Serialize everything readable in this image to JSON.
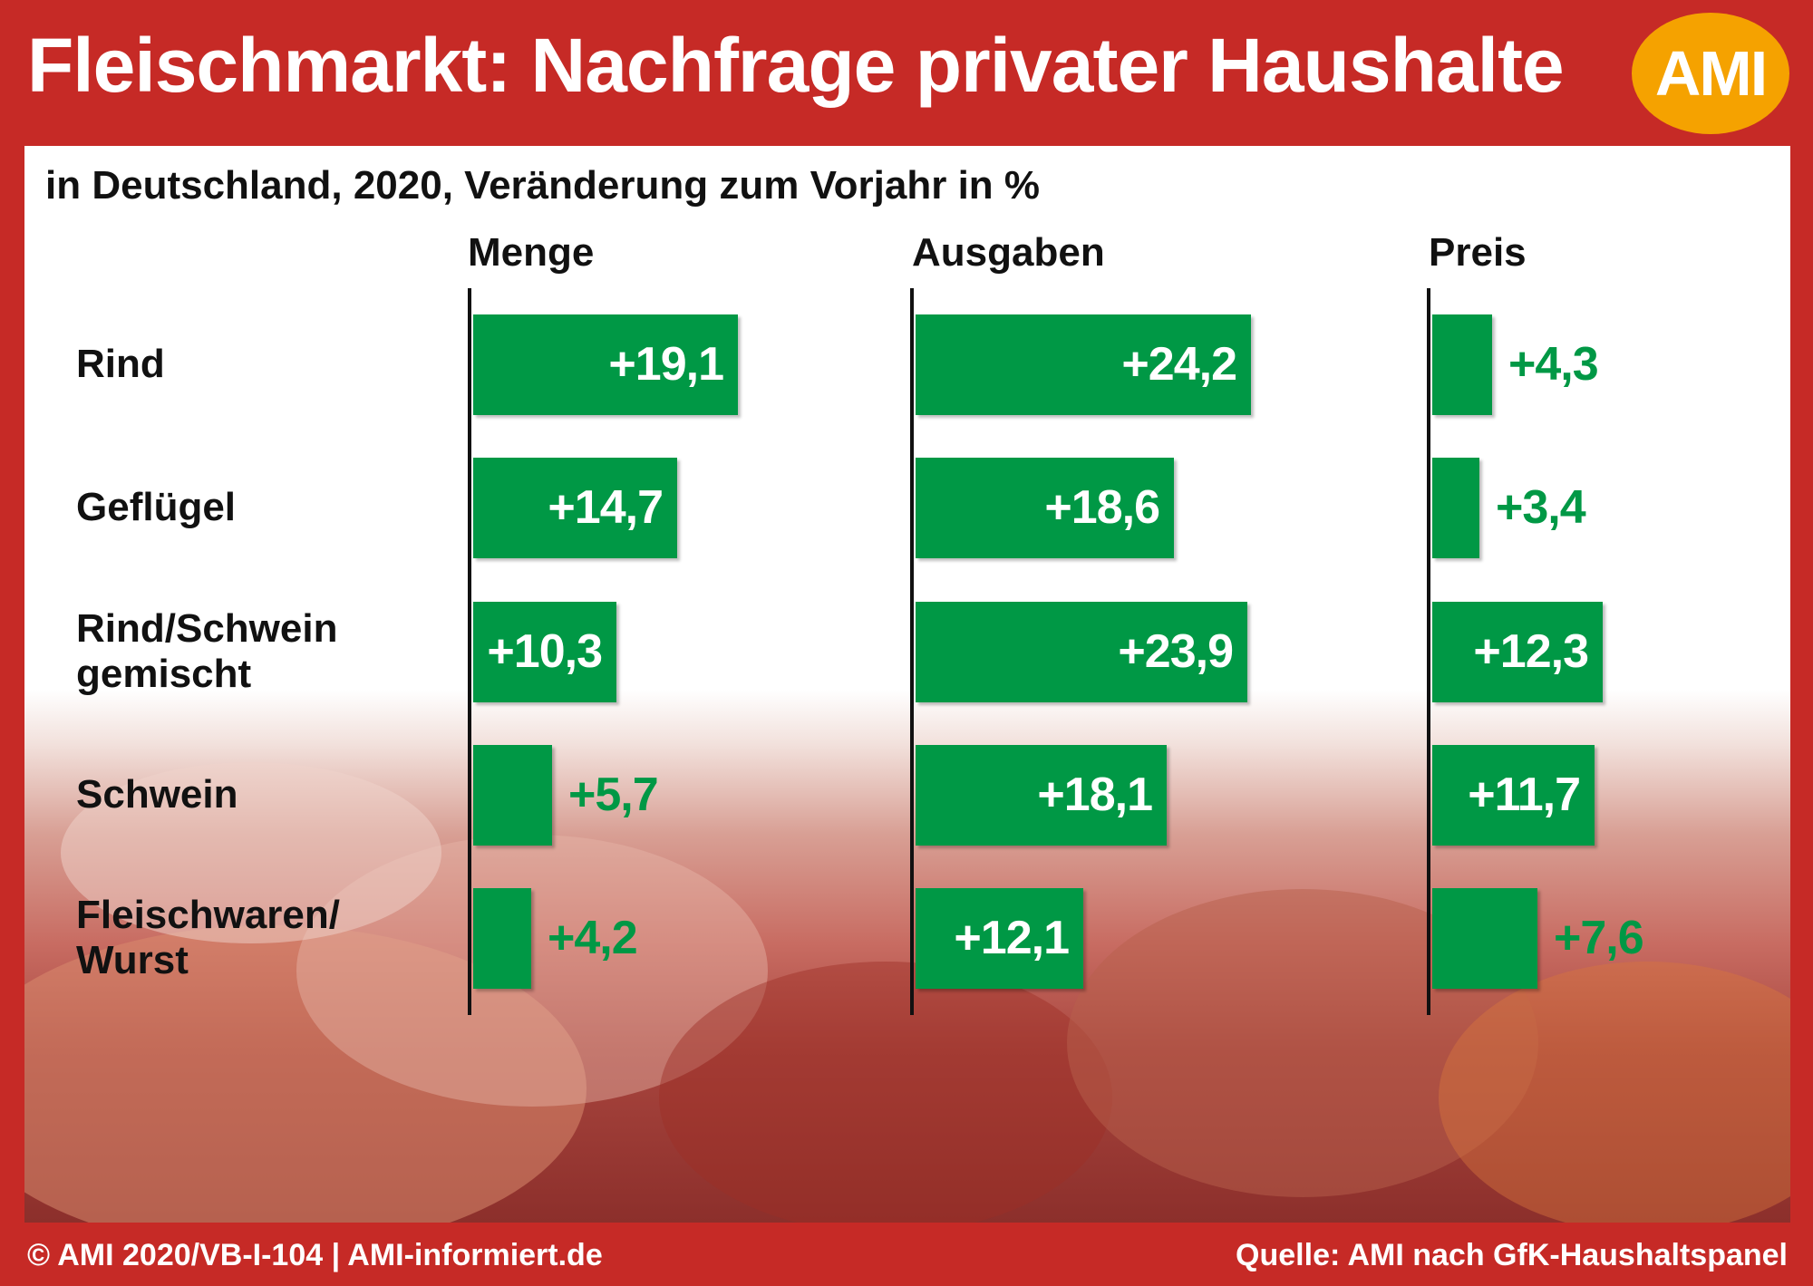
{
  "header": {
    "title": "Fleischmarkt: Nachfrage privater Haushalte",
    "logo_text": "AMI"
  },
  "chart_data": {
    "type": "bar",
    "subtitle": "in Deutschland, 2020, Veränderung zum Vorjahr in %",
    "categories": [
      "Rind",
      "Geflügel",
      "Rind/Schwein\ngemischt",
      "Schwein",
      "Fleischwaren/\nWurst"
    ],
    "series": [
      {
        "name": "Menge",
        "values": [
          19.1,
          14.7,
          10.3,
          5.7,
          4.2
        ],
        "labels": [
          "+19,1",
          "+14,7",
          "+10,3",
          "+5,7",
          "+4,2"
        ]
      },
      {
        "name": "Ausgaben",
        "values": [
          24.2,
          18.6,
          23.9,
          18.1,
          12.1
        ],
        "labels": [
          "+24,2",
          "+18,6",
          "+23,9",
          "+18,1",
          "+12,1"
        ]
      },
      {
        "name": "Preis",
        "values": [
          4.3,
          3.4,
          12.3,
          11.7,
          7.6
        ],
        "labels": [
          "+4,3",
          "+3,4",
          "+12,3",
          "+11,7",
          "+7,6"
        ]
      }
    ],
    "orientation": "horizontal",
    "bar_color": "#009845"
  },
  "footer": {
    "left": "© AMI 2020/VB-I-104 | AMI-informiert.de",
    "right": "Quelle: AMI nach GfK-Haushaltspanel"
  },
  "colors": {
    "frame": "#c62a26",
    "bar": "#009845",
    "logo": "#f5a200"
  }
}
